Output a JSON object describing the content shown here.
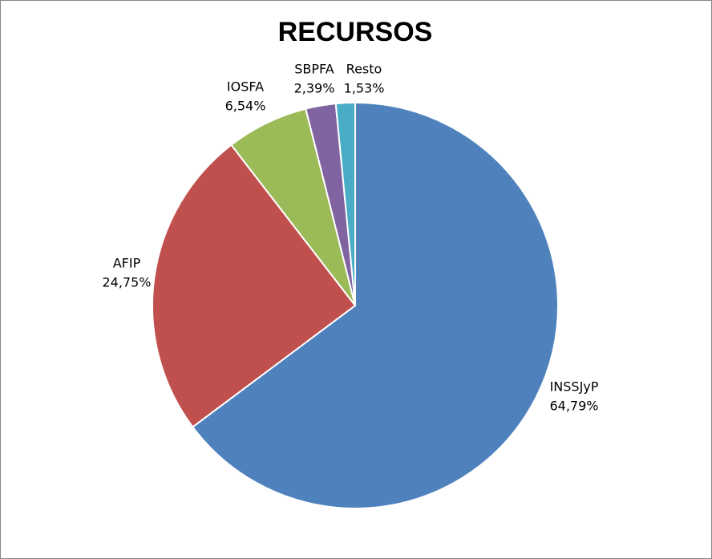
{
  "chart_data": {
    "type": "pie",
    "title": "RECURSOS",
    "categories": [
      "INSSJyP",
      "AFIP",
      "IOSFA",
      "SBPFA",
      "Resto"
    ],
    "values": [
      64.79,
      24.75,
      6.54,
      2.39,
      1.53
    ],
    "value_labels": [
      "64,79%",
      "24,75%",
      "6,54%",
      "2,39%",
      "1,53%"
    ],
    "colors": [
      "#4f81bd",
      "#c0504d",
      "#9bbb59",
      "#8064a2",
      "#4bacc6"
    ]
  }
}
